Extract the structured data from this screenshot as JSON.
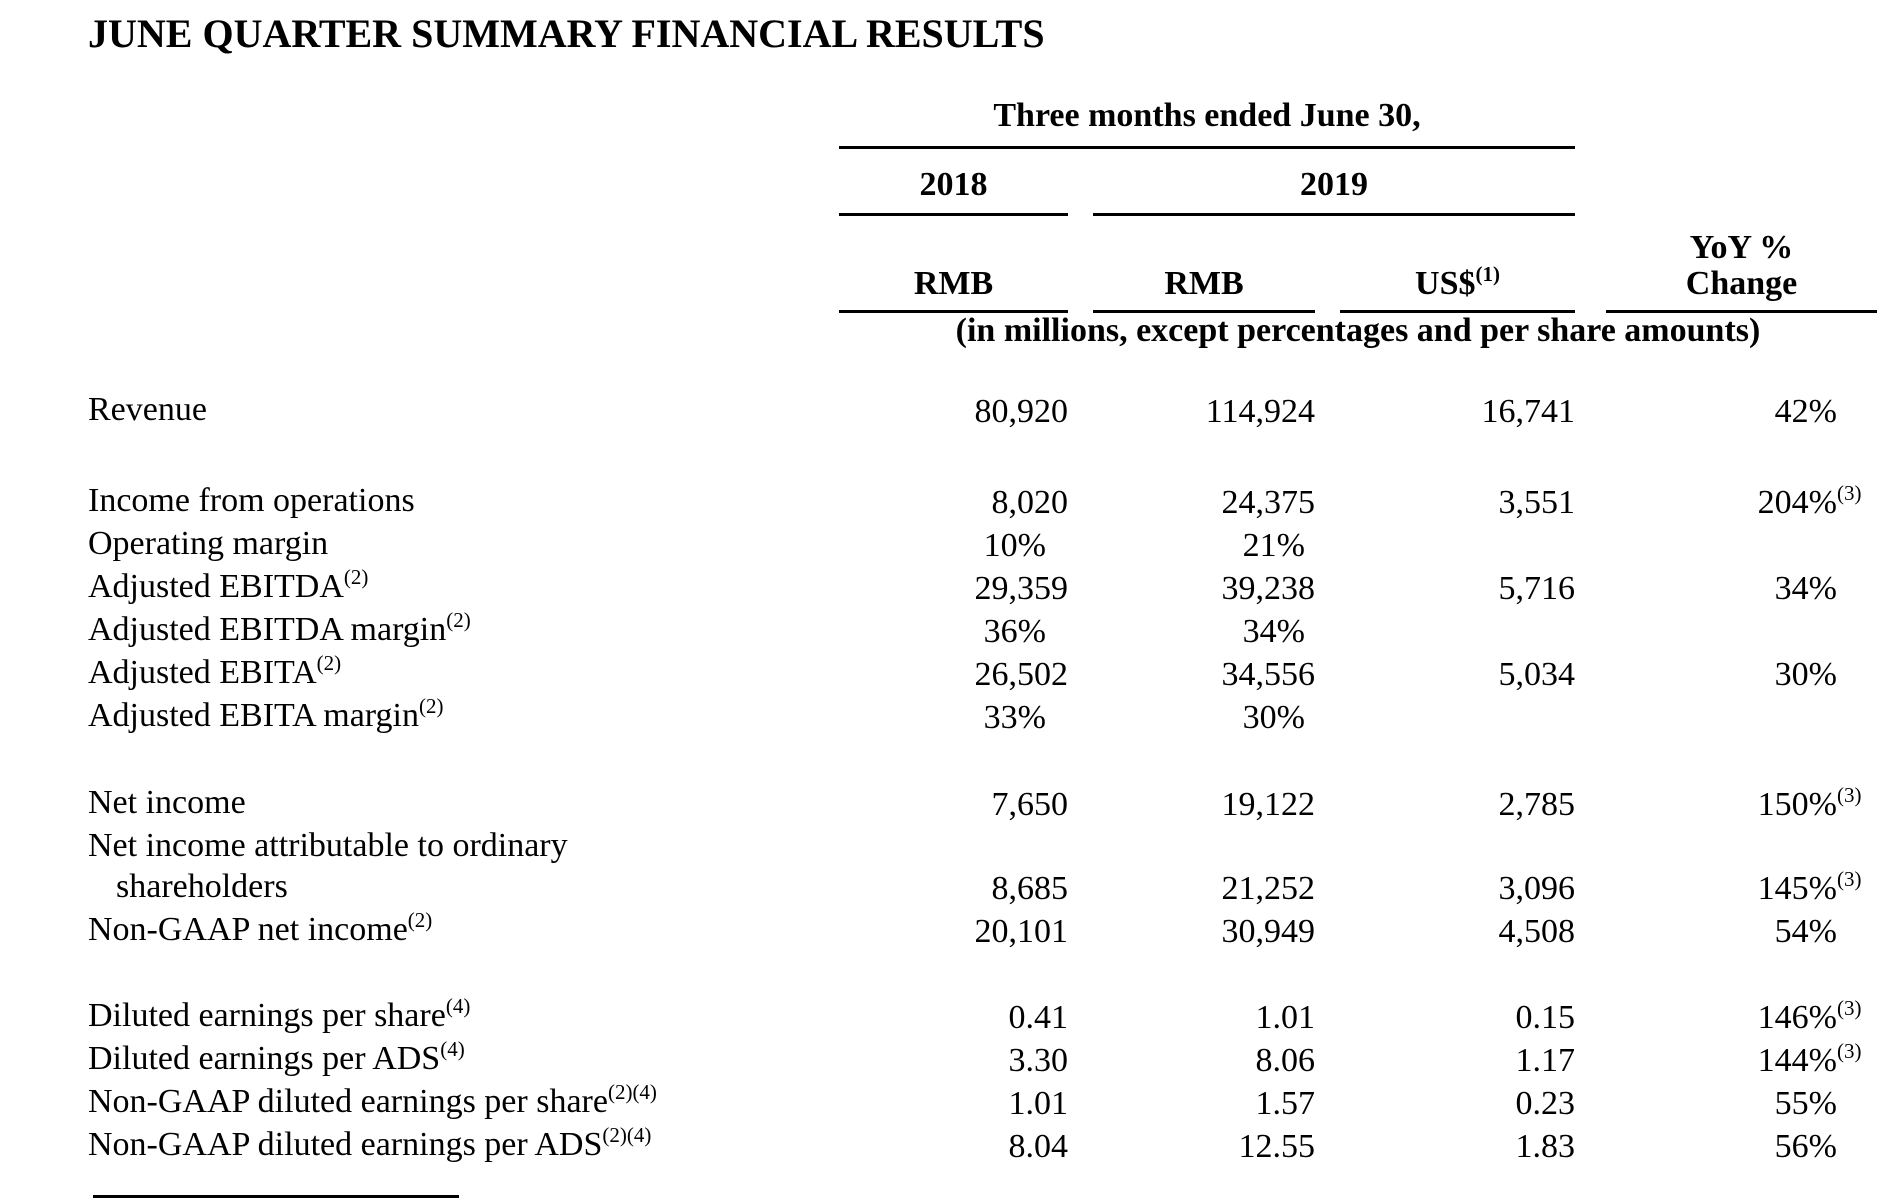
{
  "document": {
    "title": "JUNE QUARTER SUMMARY FINANCIAL RESULTS",
    "table": {
      "period_header": "Three months ended June 30,",
      "year_left": "2018",
      "year_right": "2019",
      "currency_columns": [
        {
          "label": "RMB",
          "sup": ""
        },
        {
          "label": "RMB",
          "sup": ""
        },
        {
          "label": "US$",
          "sup": "(1)"
        }
      ],
      "yoy_header": {
        "line1": "YoY %",
        "line2": "Change"
      },
      "units_note": "(in millions, except percentages and per share amounts)",
      "sections": [
        {
          "rows": [
            {
              "label": "Revenue",
              "label_sup": "",
              "label_line2": "",
              "rmb_2018": "80,920",
              "rmb_2019": "114,924",
              "usd_2019": "16,741",
              "yoy": "42%",
              "yoy_sup": ""
            }
          ]
        },
        {
          "rows": [
            {
              "label": "Income from operations",
              "label_sup": "",
              "label_line2": "",
              "rmb_2018": "8,020",
              "rmb_2019": "24,375",
              "usd_2019": "3,551",
              "yoy": "204%",
              "yoy_sup": "(3)"
            },
            {
              "label": "Operating margin",
              "label_sup": "",
              "label_line2": "",
              "rmb_2018": "10%",
              "rmb_2019": "21%",
              "usd_2019": "",
              "yoy": "",
              "yoy_sup": ""
            },
            {
              "label": "Adjusted EBITDA",
              "label_sup": "(2)",
              "label_line2": "",
              "rmb_2018": "29,359",
              "rmb_2019": "39,238",
              "usd_2019": "5,716",
              "yoy": "34%",
              "yoy_sup": ""
            },
            {
              "label": "Adjusted EBITDA margin",
              "label_sup": "(2)",
              "label_line2": "",
              "rmb_2018": "36%",
              "rmb_2019": "34%",
              "usd_2019": "",
              "yoy": "",
              "yoy_sup": ""
            },
            {
              "label": "Adjusted EBITA",
              "label_sup": "(2)",
              "label_line2": "",
              "rmb_2018": "26,502",
              "rmb_2019": "34,556",
              "usd_2019": "5,034",
              "yoy": "30%",
              "yoy_sup": ""
            },
            {
              "label": "Adjusted EBITA margin",
              "label_sup": "(2)",
              "label_line2": "",
              "rmb_2018": "33%",
              "rmb_2019": "30%",
              "usd_2019": "",
              "yoy": "",
              "yoy_sup": ""
            }
          ]
        },
        {
          "rows": [
            {
              "label": "Net income",
              "label_sup": "",
              "label_line2": "",
              "rmb_2018": "7,650",
              "rmb_2019": "19,122",
              "usd_2019": "2,785",
              "yoy": "150%",
              "yoy_sup": "(3)"
            },
            {
              "label": "Net income attributable to ordinary",
              "label_sup": "",
              "label_line2": "shareholders",
              "rmb_2018": "8,685",
              "rmb_2019": "21,252",
              "usd_2019": "3,096",
              "yoy": "145%",
              "yoy_sup": "(3)"
            },
            {
              "label": "Non-GAAP net income",
              "label_sup": "(2)",
              "label_line2": "",
              "rmb_2018": "20,101",
              "rmb_2019": "30,949",
              "usd_2019": "4,508",
              "yoy": "54%",
              "yoy_sup": ""
            }
          ]
        },
        {
          "rows": [
            {
              "label": "Diluted earnings per share",
              "label_sup": "(4)",
              "label_line2": "",
              "rmb_2018": "0.41",
              "rmb_2019": "1.01",
              "usd_2019": "0.15",
              "yoy": "146%",
              "yoy_sup": "(3)"
            },
            {
              "label": "Diluted earnings per ADS",
              "label_sup": "(4)",
              "label_line2": "",
              "rmb_2018": "3.30",
              "rmb_2019": "8.06",
              "usd_2019": "1.17",
              "yoy": "144%",
              "yoy_sup": "(3)"
            },
            {
              "label": "Non-GAAP diluted earnings per share",
              "label_sup": "(2)(4)",
              "label_line2": "",
              "rmb_2018": "1.01",
              "rmb_2019": "1.57",
              "usd_2019": "0.23",
              "yoy": "55%",
              "yoy_sup": ""
            },
            {
              "label": "Non-GAAP diluted earnings per ADS",
              "label_sup": "(2)(4)",
              "label_line2": "",
              "rmb_2018": "8.04",
              "rmb_2019": "12.55",
              "usd_2019": "1.83",
              "yoy": "56%",
              "yoy_sup": ""
            }
          ]
        }
      ]
    }
  }
}
